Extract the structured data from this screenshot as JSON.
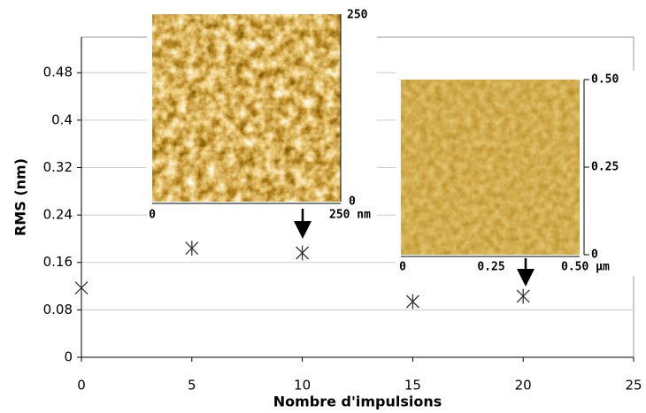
{
  "chart_data": {
    "type": "scatter",
    "x_label": "Nombre d'impulsions",
    "y_label": "RMS (nm)",
    "series": [
      {
        "x": [
          0,
          5,
          10,
          15,
          20
        ],
        "values": [
          0.117,
          0.184,
          0.176,
          0.094,
          0.103
        ],
        "markers": [
          "x",
          "asterisk",
          "asterisk",
          "asterisk",
          "asterisk"
        ],
        "color": "#333333"
      }
    ],
    "xlim": [
      0,
      25
    ],
    "xticks": [
      0,
      5,
      10,
      15,
      20,
      25
    ],
    "ylim": [
      0,
      0.54
    ],
    "yticks": [
      0,
      0.08,
      0.16,
      0.24,
      0.32,
      0.4,
      0.48
    ],
    "grid": true,
    "insets": [
      {
        "colorbar_labels": [
          "250",
          "0"
        ],
        "scale_labels": [
          "0",
          "250 nm"
        ]
      },
      {
        "colorbar_labels": [
          "0.50",
          "0.25",
          "0"
        ],
        "scale_labels": [
          "0",
          "0.25",
          "0.50 µm"
        ]
      }
    ]
  }
}
